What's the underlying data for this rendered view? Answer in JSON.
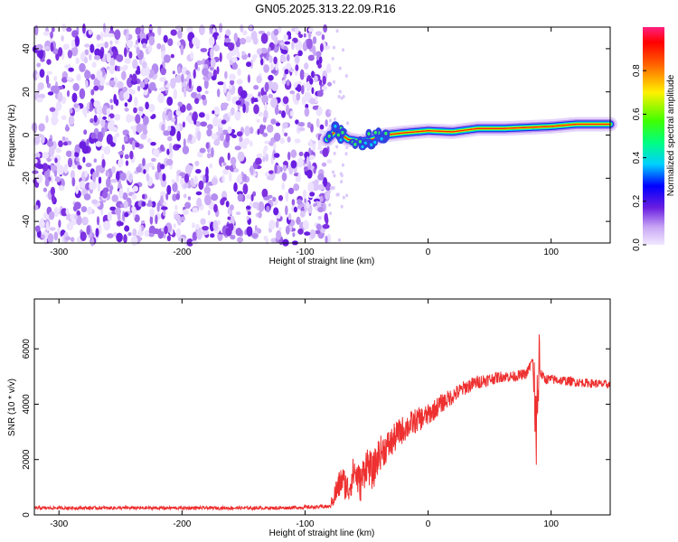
{
  "title": "GN05.2025.313.22.09.R16",
  "colors": {
    "snr_line": "#ee3030",
    "background": "#ffffff",
    "axis": "#000000"
  },
  "chart_data": [
    {
      "type": "heatmap",
      "xlabel": "Height of straight line (km)",
      "ylabel": "Frequency (Hz)",
      "xlim": [
        -320,
        148
      ],
      "ylim": [
        -50,
        50
      ],
      "x_ticks": [
        -300,
        -200,
        -100,
        0,
        100
      ],
      "y_ticks": [
        -40,
        -20,
        0,
        20,
        40
      ],
      "noise_region_x": [
        -320,
        -80
      ],
      "signal_track": [
        {
          "x": -82,
          "y": -2
        },
        {
          "x": -75,
          "y": 2
        },
        {
          "x": -65,
          "y": -2
        },
        {
          "x": -55,
          "y": -3
        },
        {
          "x": -45,
          "y": -2
        },
        {
          "x": -35,
          "y": 0
        },
        {
          "x": -20,
          "y": 1
        },
        {
          "x": 0,
          "y": 2
        },
        {
          "x": 20,
          "y": 1.5
        },
        {
          "x": 40,
          "y": 3
        },
        {
          "x": 60,
          "y": 3
        },
        {
          "x": 80,
          "y": 3.5
        },
        {
          "x": 100,
          "y": 4
        },
        {
          "x": 120,
          "y": 5
        },
        {
          "x": 148,
          "y": 5
        }
      ],
      "colorbar": {
        "label": "Normalized spectral amplitude",
        "range": [
          0,
          1
        ],
        "ticks": [
          "0.0",
          "0.2",
          "0.4",
          "0.6",
          "0.8"
        ],
        "tick_values": [
          0,
          0.2,
          0.4,
          0.6,
          0.8
        ]
      }
    },
    {
      "type": "line",
      "xlabel": "Height of straight line (km)",
      "ylabel": "SNR (10 * v/v)",
      "xlim": [
        -320,
        148
      ],
      "ylim": [
        0,
        7800
      ],
      "x_ticks": [
        -300,
        -200,
        -100,
        0,
        100
      ],
      "y_ticks": [
        0,
        2000,
        4000,
        6000
      ],
      "series": [
        {
          "x": [
            -320,
            -200,
            -120,
            -80,
            -70,
            -65,
            -60,
            -55,
            -50,
            -45,
            -40,
            -35,
            -30,
            -25,
            -20,
            -10,
            0,
            10,
            20,
            30,
            40,
            50,
            60,
            70,
            80,
            85,
            88,
            90,
            95,
            100,
            120,
            148
          ],
          "y": [
            250,
            250,
            250,
            300,
            1300,
            900,
            1600,
            1100,
            1900,
            1500,
            2200,
            2400,
            2600,
            2900,
            3100,
            3400,
            3600,
            4000,
            4300,
            4600,
            4800,
            4900,
            5000,
            5000,
            5100,
            5600,
            2000,
            5200,
            4900,
            4900,
            4800,
            4700
          ],
          "noise_level": [
            {
              "x": -320,
              "amp": 60
            },
            {
              "x": -80,
              "amp": 60
            },
            {
              "x": -75,
              "amp": 500
            },
            {
              "x": -50,
              "amp": 700
            },
            {
              "x": -20,
              "amp": 500
            },
            {
              "x": 20,
              "amp": 300
            },
            {
              "x": 60,
              "amp": 200
            },
            {
              "x": 148,
              "amp": 150
            }
          ]
        }
      ]
    }
  ]
}
